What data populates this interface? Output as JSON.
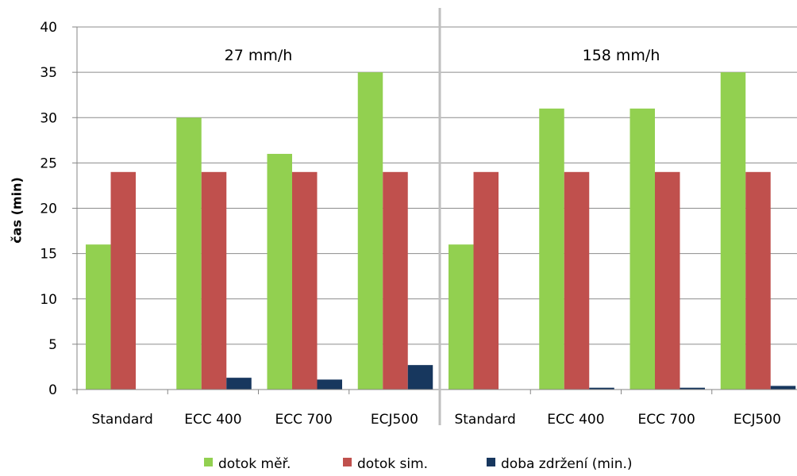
{
  "chart_data": {
    "type": "bar",
    "groups": [
      {
        "label": "27 mm/h",
        "categories": [
          "Standard",
          "ECC 400",
          "ECC 700",
          "ECJ500"
        ]
      },
      {
        "label": "158 mm/h",
        "categories": [
          "Standard",
          "ECC 400",
          "ECC 700",
          "ECJ500"
        ]
      }
    ],
    "series": [
      {
        "name": "dotok měř.",
        "color": "#92D050",
        "values": [
          16,
          30,
          26,
          35,
          16,
          31,
          31,
          35
        ]
      },
      {
        "name": "dotok sim.",
        "color": "#C0504D",
        "values": [
          24,
          24,
          24,
          24,
          24,
          24,
          24,
          24
        ]
      },
      {
        "name": "doba zdržení (min.)",
        "color": "#17375E",
        "values": [
          0,
          1.3,
          1.1,
          2.7,
          0,
          0.2,
          0.2,
          0.4
        ]
      }
    ],
    "ylabel": "čas (min)",
    "ylim": [
      0,
      40
    ],
    "yticks": [
      0,
      5,
      10,
      15,
      20,
      25,
      30,
      35,
      40
    ],
    "grid": true,
    "group_separator": true,
    "legend": "bottom"
  }
}
